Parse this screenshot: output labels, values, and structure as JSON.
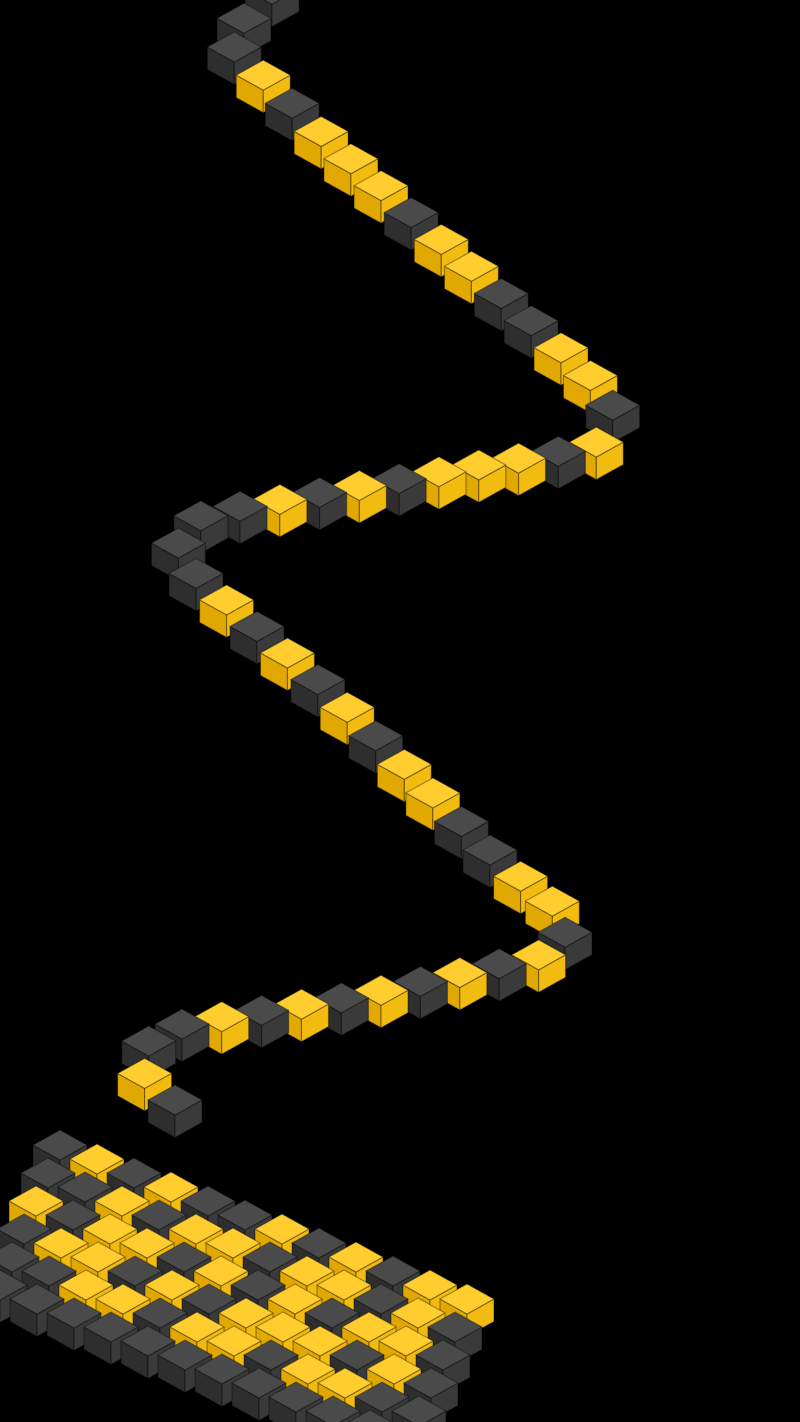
{
  "scene": {
    "description_label": "",
    "colors": {
      "background": "#000000",
      "dark_cube_top": "#4a4a4a",
      "dark_cube_left": "#2e2e2e",
      "dark_cube_right": "#3a3a3a",
      "yellow_cube_top": "#ffce2e",
      "yellow_cube_left": "#e0a800",
      "yellow_cube_right": "#f2bb10"
    },
    "chain_pattern": [
      "dark",
      "dark",
      "dark",
      "dark",
      "yellow",
      "dark",
      "yellow",
      "yellow",
      "yellow",
      "dark",
      "yellow",
      "yellow",
      "dark",
      "dark",
      "yellow",
      "yellow",
      "dark",
      "yellow",
      "dark",
      "yellow",
      "yellow",
      "yellow",
      "dark",
      "yellow",
      "dark",
      "yellow",
      "dark",
      "dark",
      "dark",
      "dark",
      "yellow",
      "dark",
      "yellow",
      "dark",
      "yellow",
      "dark",
      "yellow",
      "yellow",
      "dark",
      "dark",
      "yellow",
      "yellow",
      "dark",
      "yellow",
      "dark",
      "yellow",
      "dark",
      "yellow",
      "dark",
      "yellow",
      "dark",
      "yellow",
      "dark",
      "dark",
      "yellow",
      "dark"
    ],
    "grid_pattern": [
      [
        "dark",
        "yellow",
        "dark",
        "yellow",
        "dark",
        "dark",
        "yellow",
        "dark",
        "yellow",
        "dark",
        "yellow",
        "yellow"
      ],
      [
        "dark",
        "dark",
        "yellow",
        "dark",
        "yellow",
        "yellow",
        "dark",
        "yellow",
        "yellow",
        "dark",
        "yellow",
        "dark"
      ],
      [
        "yellow",
        "dark",
        "yellow",
        "yellow",
        "dark",
        "yellow",
        "dark",
        "yellow",
        "dark",
        "yellow",
        "yellow",
        "dark"
      ],
      [
        "dark",
        "yellow",
        "yellow",
        "dark",
        "yellow",
        "dark",
        "yellow",
        "yellow",
        "yellow",
        "dark",
        "yellow",
        "dark"
      ],
      [
        "dark",
        "dark",
        "yellow",
        "yellow",
        "dark",
        "yellow",
        "yellow",
        "dark",
        "yellow",
        "yellow",
        "dark",
        "dark"
      ],
      [
        "dark",
        "dark",
        "dark",
        "dark",
        "dark",
        "dark",
        "dark",
        "dark",
        "dark",
        "dark",
        "dark",
        "dark"
      ]
    ]
  }
}
